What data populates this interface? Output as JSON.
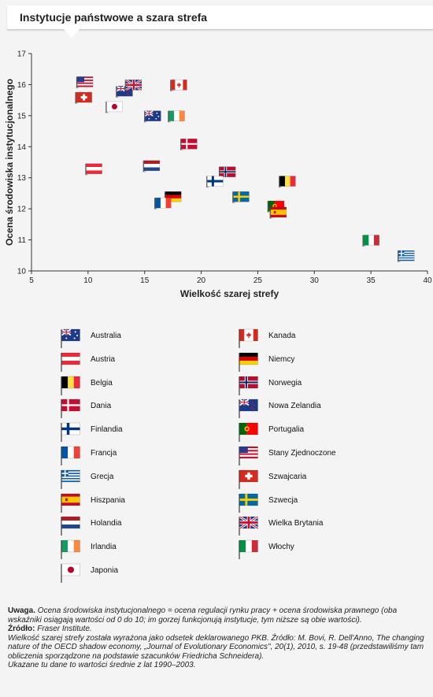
{
  "title": "Instytucje państwowe a szara strefa",
  "chart_data": {
    "type": "scatter",
    "xlabel": "Wielkość szarej strefy",
    "ylabel": "Ocena środowiska instytucjonalnego",
    "xlim": [
      5,
      40
    ],
    "ylim": [
      10,
      17
    ],
    "xticks": [
      5,
      10,
      15,
      20,
      25,
      30,
      35,
      40
    ],
    "yticks": [
      10,
      11,
      12,
      13,
      14,
      15,
      16,
      17
    ],
    "points": [
      {
        "country": "Stany Zjednoczone",
        "flag": "us",
        "x": 9.0,
        "y": 15.9
      },
      {
        "country": "Szwajcaria",
        "flag": "ch",
        "x": 8.9,
        "y": 15.4
      },
      {
        "country": "Japonia",
        "flag": "jp",
        "x": 11.6,
        "y": 15.1
      },
      {
        "country": "Nowa Zelandia",
        "flag": "nz",
        "x": 12.5,
        "y": 15.6
      },
      {
        "country": "Wielka Brytania",
        "flag": "gb",
        "x": 13.3,
        "y": 15.8
      },
      {
        "country": "Kanada",
        "flag": "ca",
        "x": 17.3,
        "y": 15.8
      },
      {
        "country": "Australia",
        "flag": "au",
        "x": 15.0,
        "y": 14.8
      },
      {
        "country": "Irlandia",
        "flag": "ie",
        "x": 17.1,
        "y": 14.8
      },
      {
        "country": "Dania",
        "flag": "dk",
        "x": 18.2,
        "y": 13.9
      },
      {
        "country": "Austria",
        "flag": "at",
        "x": 9.8,
        "y": 13.1
      },
      {
        "country": "Holandia",
        "flag": "nl",
        "x": 14.9,
        "y": 13.2
      },
      {
        "country": "Norwegia",
        "flag": "no",
        "x": 21.6,
        "y": 13.0
      },
      {
        "country": "Finlandia",
        "flag": "fi",
        "x": 20.5,
        "y": 12.7
      },
      {
        "country": "Belgia",
        "flag": "be",
        "x": 26.9,
        "y": 12.7
      },
      {
        "country": "Niemcy",
        "flag": "de",
        "x": 16.8,
        "y": 12.2
      },
      {
        "country": "Szwecja",
        "flag": "se",
        "x": 22.8,
        "y": 12.2
      },
      {
        "country": "Francja",
        "flag": "fr",
        "x": 15.9,
        "y": 12.0
      },
      {
        "country": "Portugalia",
        "flag": "pt",
        "x": 25.9,
        "y": 11.9
      },
      {
        "country": "Hiszpania",
        "flag": "es",
        "x": 26.1,
        "y": 11.7
      },
      {
        "country": "Włochy",
        "flag": "it",
        "x": 34.3,
        "y": 10.8
      },
      {
        "country": "Grecja",
        "flag": "gr",
        "x": 37.4,
        "y": 10.3
      }
    ]
  },
  "legend": {
    "left": [
      {
        "flag": "au",
        "label": "Australia"
      },
      {
        "flag": "at",
        "label": "Austria"
      },
      {
        "flag": "be",
        "label": "Belgia"
      },
      {
        "flag": "dk",
        "label": "Dania"
      },
      {
        "flag": "fi",
        "label": "Finlandia"
      },
      {
        "flag": "fr",
        "label": "Francja"
      },
      {
        "flag": "gr",
        "label": "Grecja"
      },
      {
        "flag": "es",
        "label": "Hiszpania"
      },
      {
        "flag": "nl",
        "label": "Holandia"
      },
      {
        "flag": "ie",
        "label": "Irlandia"
      },
      {
        "flag": "jp",
        "label": "Japonia"
      }
    ],
    "right": [
      {
        "flag": "ca",
        "label": "Kanada"
      },
      {
        "flag": "de",
        "label": "Niemcy"
      },
      {
        "flag": "no",
        "label": "Norwegia"
      },
      {
        "flag": "nz",
        "label": "Nowa Zelandia"
      },
      {
        "flag": "pt",
        "label": "Portugalia"
      },
      {
        "flag": "us",
        "label": "Stany Zjednoczone"
      },
      {
        "flag": "ch",
        "label": "Szwajcaria"
      },
      {
        "flag": "se",
        "label": "Szwecja"
      },
      {
        "flag": "gb",
        "label": "Wielka Brytania"
      },
      {
        "flag": "it",
        "label": "Włochy"
      }
    ]
  },
  "notes": {
    "uwaga_label": "Uwaga.",
    "uwaga_text": " Ocena środowiska instytucjonalnego = ocena regulacji rynku pracy + ocena środowiska prawnego (oba wskaźniki osiągają wartości od 0 do 10; im gorzej funkcjonują instytucje, tym niższe są obie wartości).",
    "zrodlo_label": "Źródło:",
    "zrodlo_text": " Fraser Institute.",
    "line3": "Wielkość szarej strefy została wyrażona jako odsetek deklarowanego PKB. Źródło: M. Bovi, R. Dell'Anno, The changing nature of the OECD shadow economy, „Journal of Evolutionary Economics\", 20(1), 2010, s. 19-48 (przedstawiliśmy tam obliczenia sporządzone na podstawie szacunków Friedricha Schneidera).",
    "line4": "Ukazane tu dane to wartości średnie z lat 1990–2003."
  },
  "colors": {
    "axis": "#333333",
    "pole": "#555555",
    "background": "#f4f4f4"
  }
}
